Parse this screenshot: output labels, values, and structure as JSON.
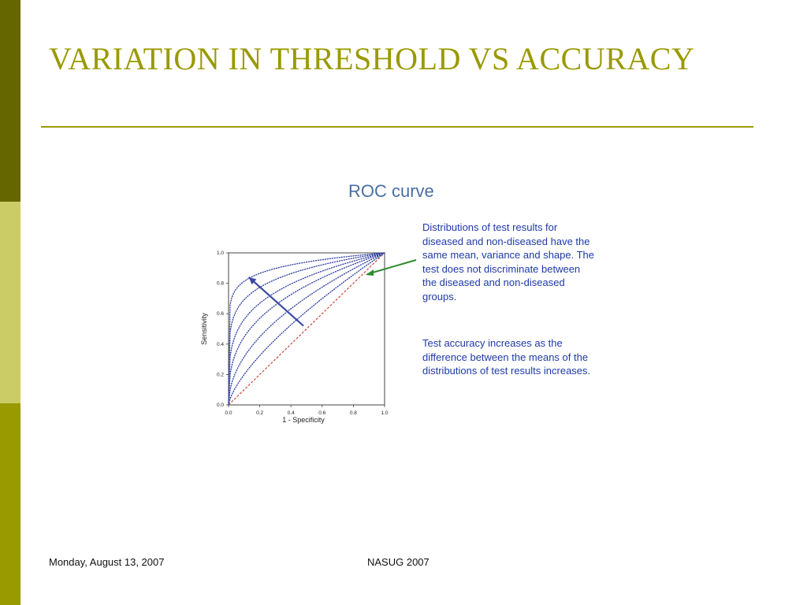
{
  "slide": {
    "title": "VARIATION IN THRESHOLD VS ACCURACY",
    "heading": "ROC curve",
    "description_1": "Distributions of test results for diseased and non-diseased have the same mean, variance and shape. The test does not discriminate between the diseased and non-diseased groups.",
    "description_2": "Test accuracy increases as the difference between the means of the distributions of test results increases."
  },
  "footer": {
    "date": "Monday, August 13, 2007",
    "event": "NASUG 2007"
  },
  "colors": {
    "sidebar_top": "#666600",
    "sidebar_mid": "#cccc66",
    "sidebar_bottom": "#999900",
    "title": "#999900",
    "rule": "#999900",
    "heading": "#4a6fa5",
    "description_text": "#1f3aa8",
    "curve": "#2a3aa0",
    "diagonal": "#c0392b",
    "annotation_line": "#2e8b2e",
    "arrow": "#3a4aa0"
  },
  "chart_data": {
    "type": "line",
    "title": "",
    "xlabel": "1 - Specificity",
    "ylabel": "Sensitivity",
    "xlim": [
      0,
      1
    ],
    "ylim": [
      0,
      1
    ],
    "x_ticks": [
      "0.0",
      "0.2",
      "0.4",
      "0.6",
      "0.8",
      "1.0"
    ],
    "y_ticks": [
      "0.0",
      "0.2",
      "0.4",
      "0.6",
      "0.8",
      "1.0"
    ],
    "series_style": "dotted",
    "diagonal_style": "dashed",
    "curve_exponents": [
      1,
      0.7,
      0.5,
      0.35,
      0.25,
      0.16,
      0.09
    ],
    "arrow": {
      "from": [
        0.48,
        0.52
      ],
      "to": [
        0.13,
        0.84
      ]
    }
  }
}
